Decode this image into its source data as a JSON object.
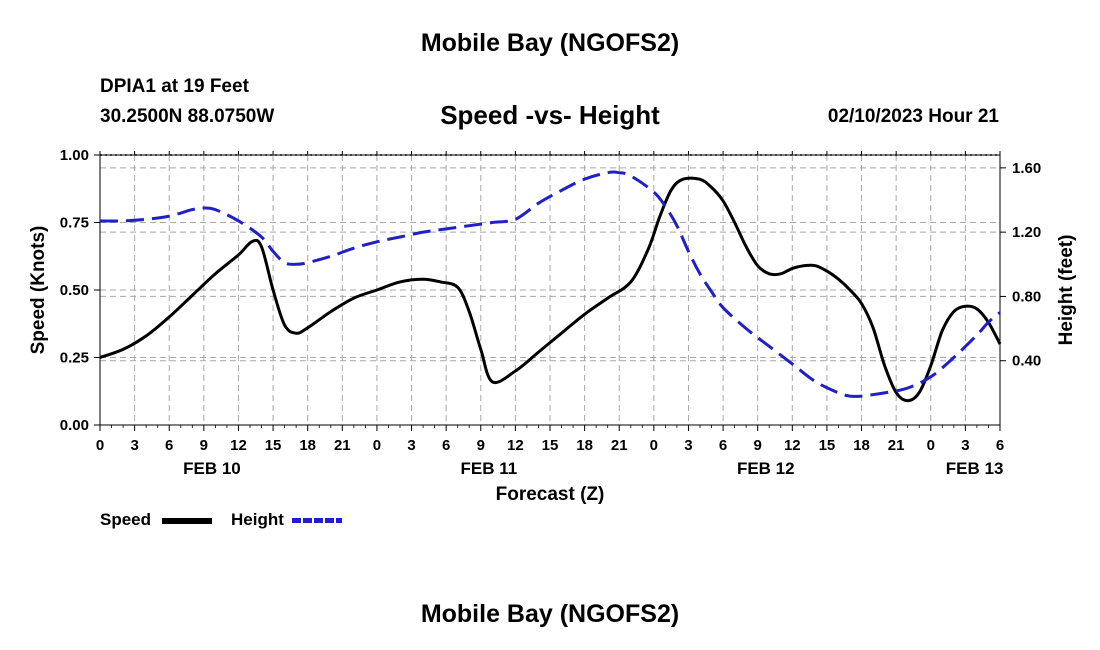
{
  "header": {
    "title": "Mobile Bay (NGOFS2)",
    "station": "DPIA1 at 19 Feet",
    "coords": "30.2500N  88.0750W",
    "subtitle": "Speed -vs- Height",
    "datetime": "02/10/2023 Hour 21"
  },
  "footer": {
    "title": "Mobile Bay (NGOFS2)"
  },
  "legend": {
    "speed_label": "Speed",
    "height_label": "Height"
  },
  "colors": {
    "speed": "#000000",
    "height": "#1f1fcc",
    "grid": "#a8a8a8"
  },
  "chart_data": {
    "type": "line",
    "title": "Speed -vs- Height",
    "xlabel": "Forecast (Z)",
    "ylabel": "Speed (Knots)",
    "y2label": "Height (feet)",
    "xlim": [
      0,
      78
    ],
    "ylim": [
      0,
      1
    ],
    "y2lim": [
      0.0,
      1.68
    ],
    "x_ticks": [
      0,
      3,
      6,
      9,
      12,
      15,
      18,
      21,
      24,
      27,
      30,
      33,
      36,
      39,
      42,
      45,
      48,
      51,
      54,
      57,
      60,
      63,
      66,
      69,
      72,
      75,
      78
    ],
    "x_tick_labels": [
      "0",
      "3",
      "6",
      "9",
      "12",
      "15",
      "18",
      "21",
      "0",
      "3",
      "6",
      "9",
      "12",
      "15",
      "18",
      "21",
      "0",
      "3",
      "6",
      "9",
      "12",
      "15",
      "18",
      "21",
      "0",
      "3",
      "6"
    ],
    "day_labels": [
      {
        "x": 9.7,
        "label": "FEB 10"
      },
      {
        "x": 33.7,
        "label": "FEB 11"
      },
      {
        "x": 57.7,
        "label": "FEB 12"
      },
      {
        "x": 75.8,
        "label": "FEB 13"
      }
    ],
    "y_ticks": [
      0.0,
      0.25,
      0.5,
      0.75,
      1.0
    ],
    "y_tick_labels": [
      "0.00",
      "0.25",
      "0.50",
      "0.75",
      "1.00"
    ],
    "y2_ticks": [
      0.4,
      0.8,
      1.2,
      1.6
    ],
    "y2_tick_labels": [
      "0.40",
      "0.80",
      "1.20",
      "1.60"
    ],
    "series": [
      {
        "name": "Speed",
        "axis": "left",
        "style": "solid",
        "x": [
          0,
          2,
          4,
          6,
          8,
          10,
          12,
          13.2,
          14,
          15,
          16,
          17,
          18,
          20,
          22,
          24,
          26,
          28,
          29.5,
          31,
          32,
          33,
          34,
          36,
          38,
          40,
          42,
          44,
          46,
          47.5,
          48.5,
          49.5,
          50.5,
          52,
          53,
          54,
          55,
          56,
          57,
          58,
          59,
          60,
          61,
          62,
          63,
          64,
          65,
          66,
          67,
          68,
          69,
          70,
          71,
          72,
          73,
          74,
          75,
          76,
          77,
          78
        ],
        "y": [
          0.25,
          0.28,
          0.33,
          0.4,
          0.48,
          0.56,
          0.63,
          0.68,
          0.66,
          0.5,
          0.37,
          0.34,
          0.36,
          0.42,
          0.47,
          0.5,
          0.53,
          0.54,
          0.53,
          0.51,
          0.42,
          0.28,
          0.16,
          0.2,
          0.27,
          0.34,
          0.41,
          0.47,
          0.53,
          0.65,
          0.77,
          0.87,
          0.91,
          0.91,
          0.88,
          0.83,
          0.75,
          0.66,
          0.59,
          0.56,
          0.56,
          0.58,
          0.59,
          0.59,
          0.57,
          0.54,
          0.5,
          0.45,
          0.36,
          0.22,
          0.12,
          0.09,
          0.12,
          0.22,
          0.35,
          0.42,
          0.44,
          0.43,
          0.38,
          0.3
        ]
      },
      {
        "name": "Height",
        "axis": "right",
        "style": "dashed",
        "x": [
          0,
          2,
          4,
          6,
          8,
          9,
          10,
          12,
          14,
          15,
          16,
          17,
          18,
          20,
          22,
          24,
          26,
          28,
          30,
          32,
          34,
          36,
          38,
          40,
          42,
          44,
          45,
          46,
          48,
          49,
          50,
          51,
          52,
          53,
          54,
          56,
          58,
          60,
          62,
          64,
          65,
          66,
          68,
          70,
          72,
          74,
          76,
          77,
          78
        ],
        "y": [
          1.27,
          1.27,
          1.28,
          1.3,
          1.34,
          1.35,
          1.34,
          1.27,
          1.17,
          1.08,
          1.01,
          1.0,
          1.01,
          1.05,
          1.1,
          1.14,
          1.17,
          1.2,
          1.22,
          1.24,
          1.26,
          1.28,
          1.38,
          1.46,
          1.53,
          1.57,
          1.57,
          1.55,
          1.45,
          1.36,
          1.24,
          1.08,
          0.94,
          0.83,
          0.73,
          0.6,
          0.49,
          0.38,
          0.27,
          0.2,
          0.18,
          0.18,
          0.2,
          0.23,
          0.3,
          0.42,
          0.56,
          0.64,
          0.7
        ]
      }
    ]
  }
}
